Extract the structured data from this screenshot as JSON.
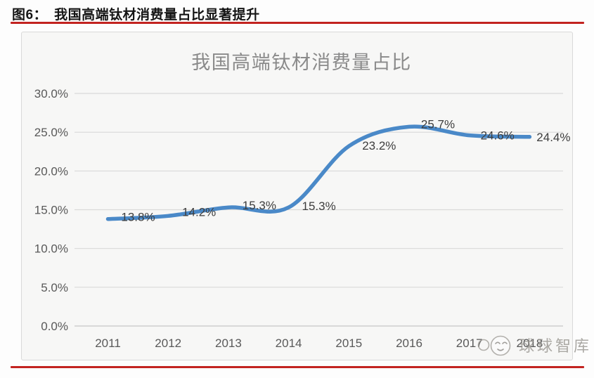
{
  "figure_header": {
    "prefix": "图6：",
    "title": "我国高端钛材消费量占比显著提升"
  },
  "colors": {
    "accent_red": "#c22320",
    "line_blue": "#4a89c8",
    "grid": "#d9d9d9",
    "baseline": "#c6c6c6",
    "axis_text": "#595959",
    "data_label": "#3d3d3d",
    "chart_title": "#8a8a8a"
  },
  "chart_data": {
    "type": "line",
    "title": "我国高端钛材消费量占比",
    "categories": [
      "2011",
      "2012",
      "2013",
      "2014",
      "2015",
      "2016",
      "2017",
      "2018"
    ],
    "values": [
      13.8,
      14.2,
      15.3,
      15.3,
      23.2,
      25.7,
      24.6,
      24.4
    ],
    "data_labels": [
      "13.8%",
      "14.2%",
      "15.3%",
      "15.3%",
      "23.2%",
      "25.7%",
      "24.6%",
      "24.4%"
    ],
    "y_ticks": [
      "0.0%",
      "5.0%",
      "10.0%",
      "15.0%",
      "20.0%",
      "25.0%",
      "30.0%"
    ],
    "ylim": [
      0,
      30
    ],
    "y_step": 5,
    "xlabel": "",
    "ylabel": "",
    "grid": true,
    "legend": false,
    "smooth": true
  },
  "watermark": {
    "text": "球球智库",
    "icon": "winking-face-logo-icon"
  }
}
